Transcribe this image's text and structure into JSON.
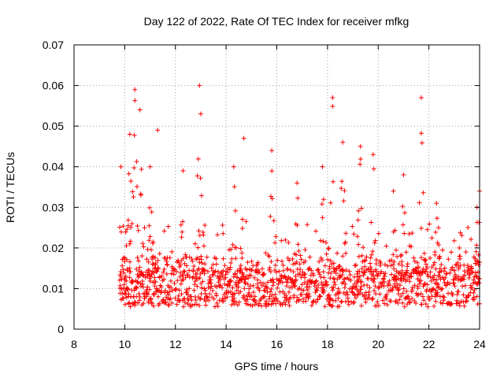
{
  "chart_data": {
    "type": "scatter",
    "title": "Day 122 of 2022, Rate Of TEC Index for receiver mfkg",
    "xlabel": "GPS time / hours",
    "ylabel": "ROTI / TECUs",
    "xlim": [
      8,
      24
    ],
    "ylim": [
      0,
      0.07
    ],
    "xticks": [
      "8",
      "10",
      "12",
      "14",
      "16",
      "18",
      "20",
      "22",
      "24"
    ],
    "yticks": [
      "0",
      "0.01",
      "0.02",
      "0.03",
      "0.04",
      "0.05",
      "0.06",
      "0.07"
    ],
    "grid": true,
    "marker": "+",
    "color": "#ff0000",
    "series": [
      {
        "name": "ROTI",
        "sampling": "approximately every 0.02 h from 9.8 h to 24 h; baseline ~0.006-0.015 TECU with spikes",
        "x_range": [
          9.8,
          24.0
        ],
        "y_range": [
          0.002,
          0.06
        ],
        "peaks": [
          [
            9.85,
            0.04
          ],
          [
            10.2,
            0.048
          ],
          [
            10.4,
            0.059
          ],
          [
            10.6,
            0.054
          ],
          [
            11.0,
            0.04
          ],
          [
            11.3,
            0.049
          ],
          [
            12.3,
            0.039
          ],
          [
            12.95,
            0.06
          ],
          [
            13.0,
            0.053
          ],
          [
            14.3,
            0.04
          ],
          [
            14.7,
            0.047
          ],
          [
            15.8,
            0.044
          ],
          [
            16.8,
            0.036
          ],
          [
            17.8,
            0.04
          ],
          [
            18.2,
            0.057
          ],
          [
            18.6,
            0.046
          ],
          [
            19.3,
            0.045
          ],
          [
            19.8,
            0.043
          ],
          [
            20.6,
            0.034
          ],
          [
            21.0,
            0.038
          ],
          [
            21.7,
            0.057
          ],
          [
            22.3,
            0.031
          ],
          [
            23.2,
            0.02
          ],
          [
            23.9,
            0.03
          ],
          [
            24.0,
            0.034
          ]
        ]
      }
    ]
  }
}
